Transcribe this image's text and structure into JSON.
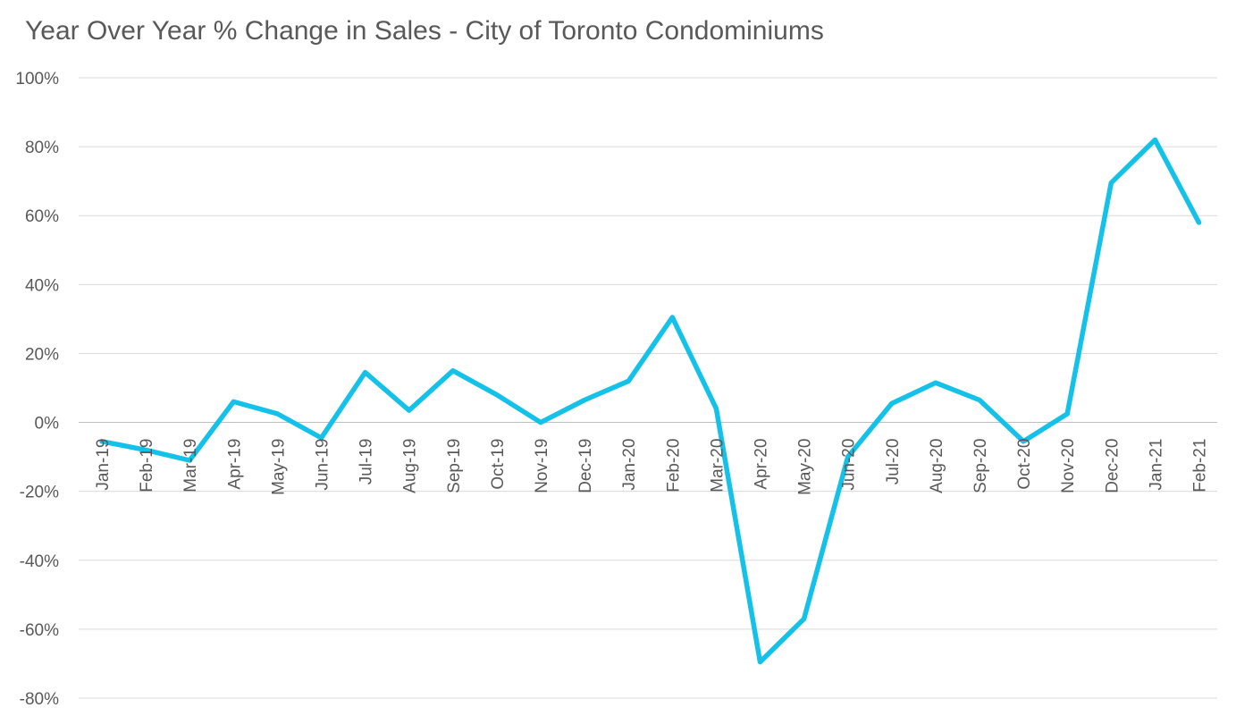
{
  "chart_data": {
    "type": "line",
    "title": "Year Over Year % Change in Sales - City of Toronto Condominiums",
    "xlabel": "",
    "ylabel": "",
    "categories": [
      "Jan-19",
      "Feb-19",
      "Mar-19",
      "Apr-19",
      "May-19",
      "Jun-19",
      "Jul-19",
      "Aug-19",
      "Sep-19",
      "Oct-19",
      "Nov-19",
      "Dec-19",
      "Jan-20",
      "Feb-20",
      "Mar-20",
      "Apr-20",
      "May-20",
      "Jun-20",
      "Jul-20",
      "Aug-20",
      "Sep-20",
      "Oct-20",
      "Nov-20",
      "Dec-20",
      "Jan-21",
      "Feb-21"
    ],
    "series": [
      {
        "values": [
          -5.5,
          -8,
          -11,
          6,
          2.5,
          -4.5,
          14.5,
          3.5,
          15,
          8,
          0,
          6.5,
          12,
          30.5,
          4,
          -69.5,
          -57,
          -10,
          5.5,
          11.5,
          6.5,
          -5.5,
          2.5,
          69.5,
          82,
          58
        ],
        "color": "#14C1E8"
      }
    ],
    "ylim": [
      -80,
      100
    ],
    "yticks": [
      -80,
      -60,
      -40,
      -20,
      0,
      20,
      40,
      60,
      80,
      100
    ],
    "ytick_labels": [
      "-80%",
      "-60%",
      "-40%",
      "-20%",
      "0%",
      "20%",
      "40%",
      "60%",
      "80%",
      "100%"
    ],
    "grid": true,
    "legend": "none"
  }
}
